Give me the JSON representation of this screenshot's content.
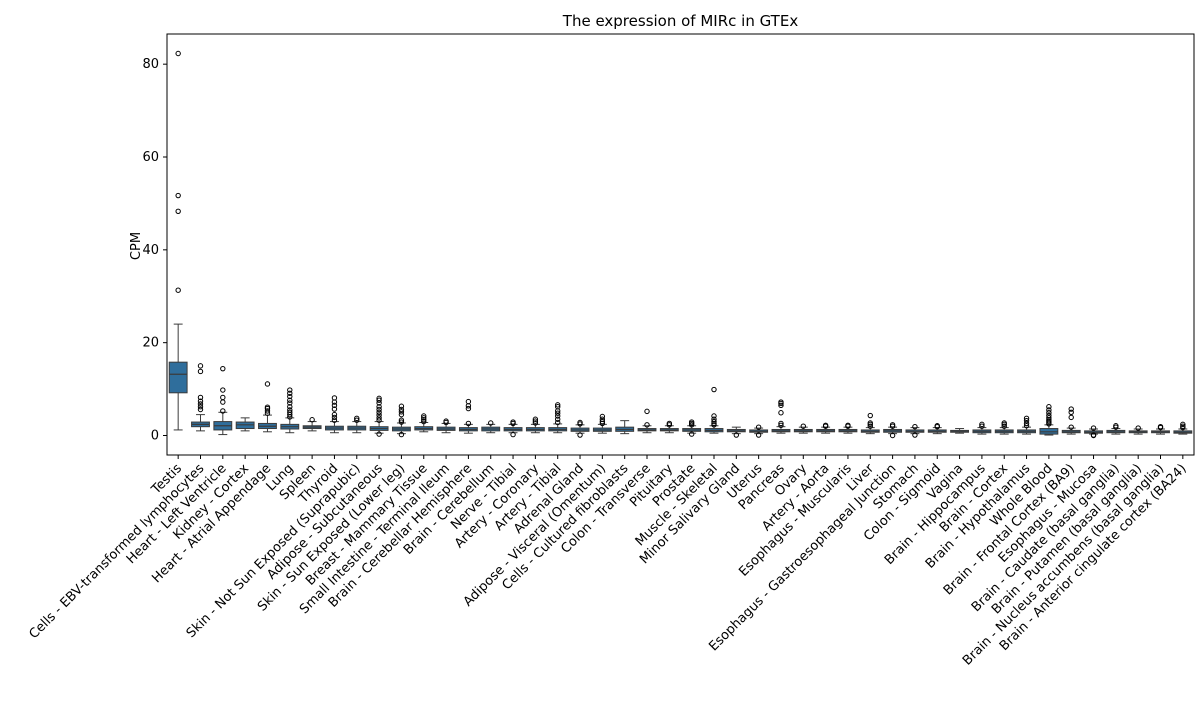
{
  "chart_data": {
    "type": "box",
    "title": "The expression of MIRc in GTEx",
    "xlabel": "",
    "ylabel": "CPM",
    "ylim": [
      -4.2,
      86.5
    ],
    "yticks": [
      0,
      20,
      40,
      60,
      80
    ],
    "grid": false,
    "legend": "none",
    "box_color": "#2f6e9c",
    "categories": [
      "Testis",
      "Cells - EBV-transformed lymphocytes",
      "Heart - Left Ventricle",
      "Kidney - Cortex",
      "Heart - Atrial Appendage",
      "Lung",
      "Spleen",
      "Thyroid",
      "Skin - Not Sun Exposed (Suprapubic)",
      "Adipose - Subcutaneous",
      "Skin - Sun Exposed (Lower leg)",
      "Breast - Mammary Tissue",
      "Small Intestine - Terminal Ileum",
      "Brain - Cerebellar Hemisphere",
      "Brain - Cerebellum",
      "Nerve - Tibial",
      "Artery - Coronary",
      "Artery - Tibial",
      "Adrenal Gland",
      "Adipose - Visceral (Omentum)",
      "Cells - Cultured fibroblasts",
      "Colon - Transverse",
      "Pituitary",
      "Prostate",
      "Muscle - Skeletal",
      "Minor Salivary Gland",
      "Uterus",
      "Pancreas",
      "Ovary",
      "Artery - Aorta",
      "Esophagus - Muscularis",
      "Liver",
      "Esophagus - Gastroesophageal Junction",
      "Stomach",
      "Colon - Sigmoid",
      "Vagina",
      "Brain - Hippocampus",
      "Brain - Cortex",
      "Brain - Hypothalamus",
      "Whole Blood",
      "Brain - Frontal Cortex (BA9)",
      "Esophagus - Mucosa",
      "Brain - Caudate (basal ganglia)",
      "Brain - Putamen (basal ganglia)",
      "Brain - Nucleus accumbens (basal ganglia)",
      "Brain - Anterior cingulate cortex (BA24)"
    ],
    "boxes": [
      {
        "min": 1.2,
        "q1": 9.2,
        "median": 13.2,
        "q3": 15.8,
        "max": 24.0,
        "outliers": [
          31.3,
          48.3,
          51.7,
          82.3
        ]
      },
      {
        "min": 1.0,
        "q1": 1.9,
        "median": 2.4,
        "q3": 2.9,
        "max": 4.5,
        "outliers": [
          5.6,
          6.2,
          6.8,
          7.4,
          8.2,
          13.8,
          15.0
        ]
      },
      {
        "min": 0.2,
        "q1": 1.2,
        "median": 2.1,
        "q3": 3.0,
        "max": 5.0,
        "outliers": [
          5.3,
          7.2,
          8.2,
          9.8,
          14.4
        ]
      },
      {
        "min": 1.0,
        "q1": 1.5,
        "median": 2.3,
        "q3": 2.9,
        "max": 3.8,
        "outliers": []
      },
      {
        "min": 0.8,
        "q1": 1.5,
        "median": 2.0,
        "q3": 2.6,
        "max": 4.4,
        "outliers": [
          4.8,
          5.3,
          5.8,
          6.1,
          11.1
        ]
      },
      {
        "min": 0.6,
        "q1": 1.4,
        "median": 1.9,
        "q3": 2.4,
        "max": 3.8,
        "outliers": [
          4.0,
          4.5,
          5.0,
          5.5,
          6.2,
          7.0,
          7.6,
          8.4,
          9.1,
          9.8
        ]
      },
      {
        "min": 1.0,
        "q1": 1.5,
        "median": 1.8,
        "q3": 2.1,
        "max": 3.0,
        "outliers": [
          3.4
        ]
      },
      {
        "min": 0.6,
        "q1": 1.2,
        "median": 1.6,
        "q3": 2.0,
        "max": 3.0,
        "outliers": [
          3.3,
          3.9,
          4.5,
          5.7,
          6.5,
          7.2,
          8.1
        ]
      },
      {
        "min": 0.6,
        "q1": 1.2,
        "median": 1.6,
        "q3": 2.0,
        "max": 3.0,
        "outliers": [
          3.3,
          3.7
        ]
      },
      {
        "min": 0.5,
        "q1": 1.1,
        "median": 1.5,
        "q3": 1.9,
        "max": 3.0,
        "outliers": [
          0.3,
          3.3,
          3.8,
          4.4,
          5.0,
          5.6,
          6.2,
          7.0,
          7.6,
          8.0
        ]
      },
      {
        "min": 0.4,
        "q1": 1.0,
        "median": 1.4,
        "q3": 1.8,
        "max": 2.7,
        "outliers": [
          0.2,
          2.9,
          3.3,
          4.5,
          5.1,
          5.6,
          6.3
        ]
      },
      {
        "min": 0.8,
        "q1": 1.2,
        "median": 1.5,
        "q3": 1.9,
        "max": 2.8,
        "outliers": [
          3.0,
          3.4,
          3.8,
          4.2
        ]
      },
      {
        "min": 0.6,
        "q1": 1.1,
        "median": 1.4,
        "q3": 1.8,
        "max": 2.6,
        "outliers": [
          2.8,
          3.1
        ]
      },
      {
        "min": 0.5,
        "q1": 1.0,
        "median": 1.3,
        "q3": 1.7,
        "max": 2.4,
        "outliers": [
          2.6,
          5.8,
          6.4,
          7.3
        ]
      },
      {
        "min": 0.6,
        "q1": 1.0,
        "median": 1.4,
        "q3": 1.8,
        "max": 2.4,
        "outliers": [
          2.7
        ]
      },
      {
        "min": 0.6,
        "q1": 1.0,
        "median": 1.3,
        "q3": 1.7,
        "max": 2.4,
        "outliers": [
          0.2,
          2.6,
          2.9
        ]
      },
      {
        "min": 0.6,
        "q1": 1.0,
        "median": 1.3,
        "q3": 1.7,
        "max": 2.4,
        "outliers": [
          2.7,
          3.1,
          3.5
        ]
      },
      {
        "min": 0.6,
        "q1": 1.0,
        "median": 1.3,
        "q3": 1.7,
        "max": 2.5,
        "outliers": [
          2.8,
          3.5,
          4.2,
          4.8,
          5.3,
          6.2,
          6.6
        ]
      },
      {
        "min": 0.5,
        "q1": 0.9,
        "median": 1.2,
        "q3": 1.6,
        "max": 2.3,
        "outliers": [
          0.1,
          2.5,
          2.8
        ]
      },
      {
        "min": 0.5,
        "q1": 0.9,
        "median": 1.2,
        "q3": 1.6,
        "max": 2.4,
        "outliers": [
          2.6,
          3.0,
          3.5,
          4.1
        ]
      },
      {
        "min": 0.4,
        "q1": 0.9,
        "median": 1.3,
        "q3": 1.8,
        "max": 3.2,
        "outliers": []
      },
      {
        "min": 0.6,
        "q1": 1.0,
        "median": 1.2,
        "q3": 1.5,
        "max": 2.1,
        "outliers": [
          2.3,
          5.2
        ]
      },
      {
        "min": 0.6,
        "q1": 1.0,
        "median": 1.2,
        "q3": 1.5,
        "max": 2.1,
        "outliers": [
          2.3,
          2.6
        ]
      },
      {
        "min": 0.5,
        "q1": 0.9,
        "median": 1.2,
        "q3": 1.5,
        "max": 2.1,
        "outliers": [
          0.3,
          2.3,
          2.6,
          2.9
        ]
      },
      {
        "min": 0.5,
        "q1": 0.8,
        "median": 1.1,
        "q3": 1.5,
        "max": 2.1,
        "outliers": [
          2.3,
          2.6,
          3.0,
          3.5,
          4.2,
          9.9
        ]
      },
      {
        "min": 0.4,
        "q1": 0.8,
        "median": 1.0,
        "q3": 1.3,
        "max": 1.8,
        "outliers": [
          0.1
        ]
      },
      {
        "min": 0.4,
        "q1": 0.7,
        "median": 0.9,
        "q3": 1.2,
        "max": 1.6,
        "outliers": [
          1.8,
          0.1
        ]
      },
      {
        "min": 0.5,
        "q1": 0.8,
        "median": 1.0,
        "q3": 1.3,
        "max": 1.9,
        "outliers": [
          2.2,
          2.6,
          4.9,
          6.5,
          6.9,
          7.2
        ]
      },
      {
        "min": 0.5,
        "q1": 0.8,
        "median": 1.0,
        "q3": 1.3,
        "max": 1.8,
        "outliers": [
          2.0
        ]
      },
      {
        "min": 0.5,
        "q1": 0.8,
        "median": 1.0,
        "q3": 1.3,
        "max": 1.8,
        "outliers": [
          2.0,
          2.2
        ]
      },
      {
        "min": 0.5,
        "q1": 0.8,
        "median": 1.0,
        "q3": 1.3,
        "max": 1.8,
        "outliers": [
          2.0,
          2.2
        ]
      },
      {
        "min": 0.4,
        "q1": 0.7,
        "median": 0.9,
        "q3": 1.2,
        "max": 1.7,
        "outliers": [
          2.0,
          2.4,
          2.7,
          4.3
        ]
      },
      {
        "min": 0.4,
        "q1": 0.7,
        "median": 1.0,
        "q3": 1.3,
        "max": 1.8,
        "outliers": [
          0.0,
          2.0,
          2.3
        ]
      },
      {
        "min": 0.4,
        "q1": 0.7,
        "median": 0.9,
        "q3": 1.2,
        "max": 1.7,
        "outliers": [
          0.1,
          1.9
        ]
      },
      {
        "min": 0.4,
        "q1": 0.7,
        "median": 0.9,
        "q3": 1.2,
        "max": 1.7,
        "outliers": [
          1.9,
          2.1
        ]
      },
      {
        "min": 0.5,
        "q1": 0.7,
        "median": 0.9,
        "q3": 1.1,
        "max": 1.5,
        "outliers": []
      },
      {
        "min": 0.3,
        "q1": 0.6,
        "median": 0.9,
        "q3": 1.2,
        "max": 1.7,
        "outliers": [
          2.0,
          2.4
        ]
      },
      {
        "min": 0.3,
        "q1": 0.6,
        "median": 0.9,
        "q3": 1.2,
        "max": 1.7,
        "outliers": [
          2.0,
          2.4,
          2.7
        ]
      },
      {
        "min": 0.3,
        "q1": 0.6,
        "median": 0.9,
        "q3": 1.2,
        "max": 1.8,
        "outliers": [
          2.1,
          2.6,
          3.2,
          3.7
        ]
      },
      {
        "min": 0.1,
        "q1": 0.3,
        "median": 0.8,
        "q3": 1.5,
        "max": 2.3,
        "outliers": [
          2.5,
          2.8,
          3.1,
          3.4,
          3.8,
          4.3,
          4.9,
          5.5,
          6.2
        ]
      },
      {
        "min": 0.3,
        "q1": 0.6,
        "median": 0.8,
        "q3": 1.1,
        "max": 1.6,
        "outliers": [
          1.8,
          3.9,
          5.0,
          5.7
        ]
      },
      {
        "min": 0.3,
        "q1": 0.5,
        "median": 0.7,
        "q3": 1.0,
        "max": 1.4,
        "outliers": [
          0.0,
          1.6,
          0.1
        ]
      },
      {
        "min": 0.3,
        "q1": 0.6,
        "median": 0.8,
        "q3": 1.1,
        "max": 1.5,
        "outliers": [
          1.8,
          2.1
        ]
      },
      {
        "min": 0.3,
        "q1": 0.6,
        "median": 0.8,
        "q3": 1.0,
        "max": 1.4,
        "outliers": [
          1.6
        ]
      },
      {
        "min": 0.3,
        "q1": 0.6,
        "median": 0.8,
        "q3": 1.0,
        "max": 1.4,
        "outliers": [
          1.7,
          1.9
        ]
      },
      {
        "min": 0.3,
        "q1": 0.5,
        "median": 0.7,
        "q3": 1.0,
        "max": 1.4,
        "outliers": [
          1.7,
          2.0,
          2.4
        ]
      }
    ]
  }
}
